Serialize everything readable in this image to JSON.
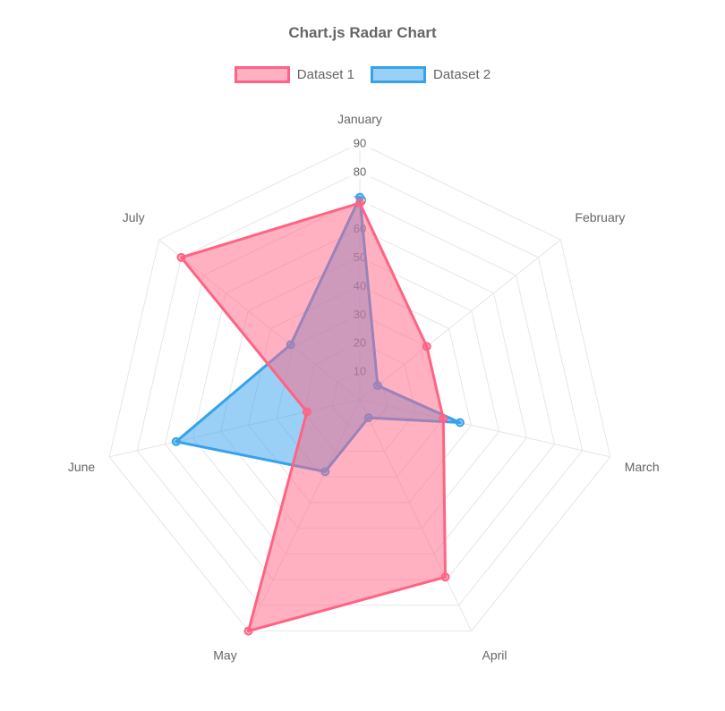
{
  "title": "Chart.js Radar Chart",
  "legend": {
    "position": "top",
    "items": [
      {
        "label": "Dataset 1"
      },
      {
        "label": "Dataset 2"
      }
    ]
  },
  "chart_data": {
    "type": "radar",
    "title": "Chart.js Radar Chart",
    "categories": [
      "January",
      "February",
      "March",
      "April",
      "May",
      "June",
      "July"
    ],
    "series": [
      {
        "name": "Dataset 1",
        "values": [
          69,
          30,
          30,
          69,
          90,
          19,
          80
        ],
        "border_color": "#FF6384",
        "fill_color": "rgba(255,99,132,0.5)"
      },
      {
        "name": "Dataset 2",
        "values": [
          71,
          8,
          36,
          7,
          28,
          66,
          31
        ],
        "border_color": "#36A2EB",
        "fill_color": "rgba(54,162,235,0.5)"
      }
    ],
    "scale": {
      "min": 0,
      "max": 90,
      "tick_step": 10,
      "tick_labels": [
        "10",
        "20",
        "30",
        "40",
        "50",
        "60",
        "70",
        "80",
        "90"
      ],
      "grid": true,
      "grid_shape": "polygon"
    },
    "legend_position": "top"
  },
  "colors": {
    "text": "#666666",
    "grid": "#e6e6e6",
    "tick_backdrop": "rgba(255,255,255,0.75)"
  }
}
